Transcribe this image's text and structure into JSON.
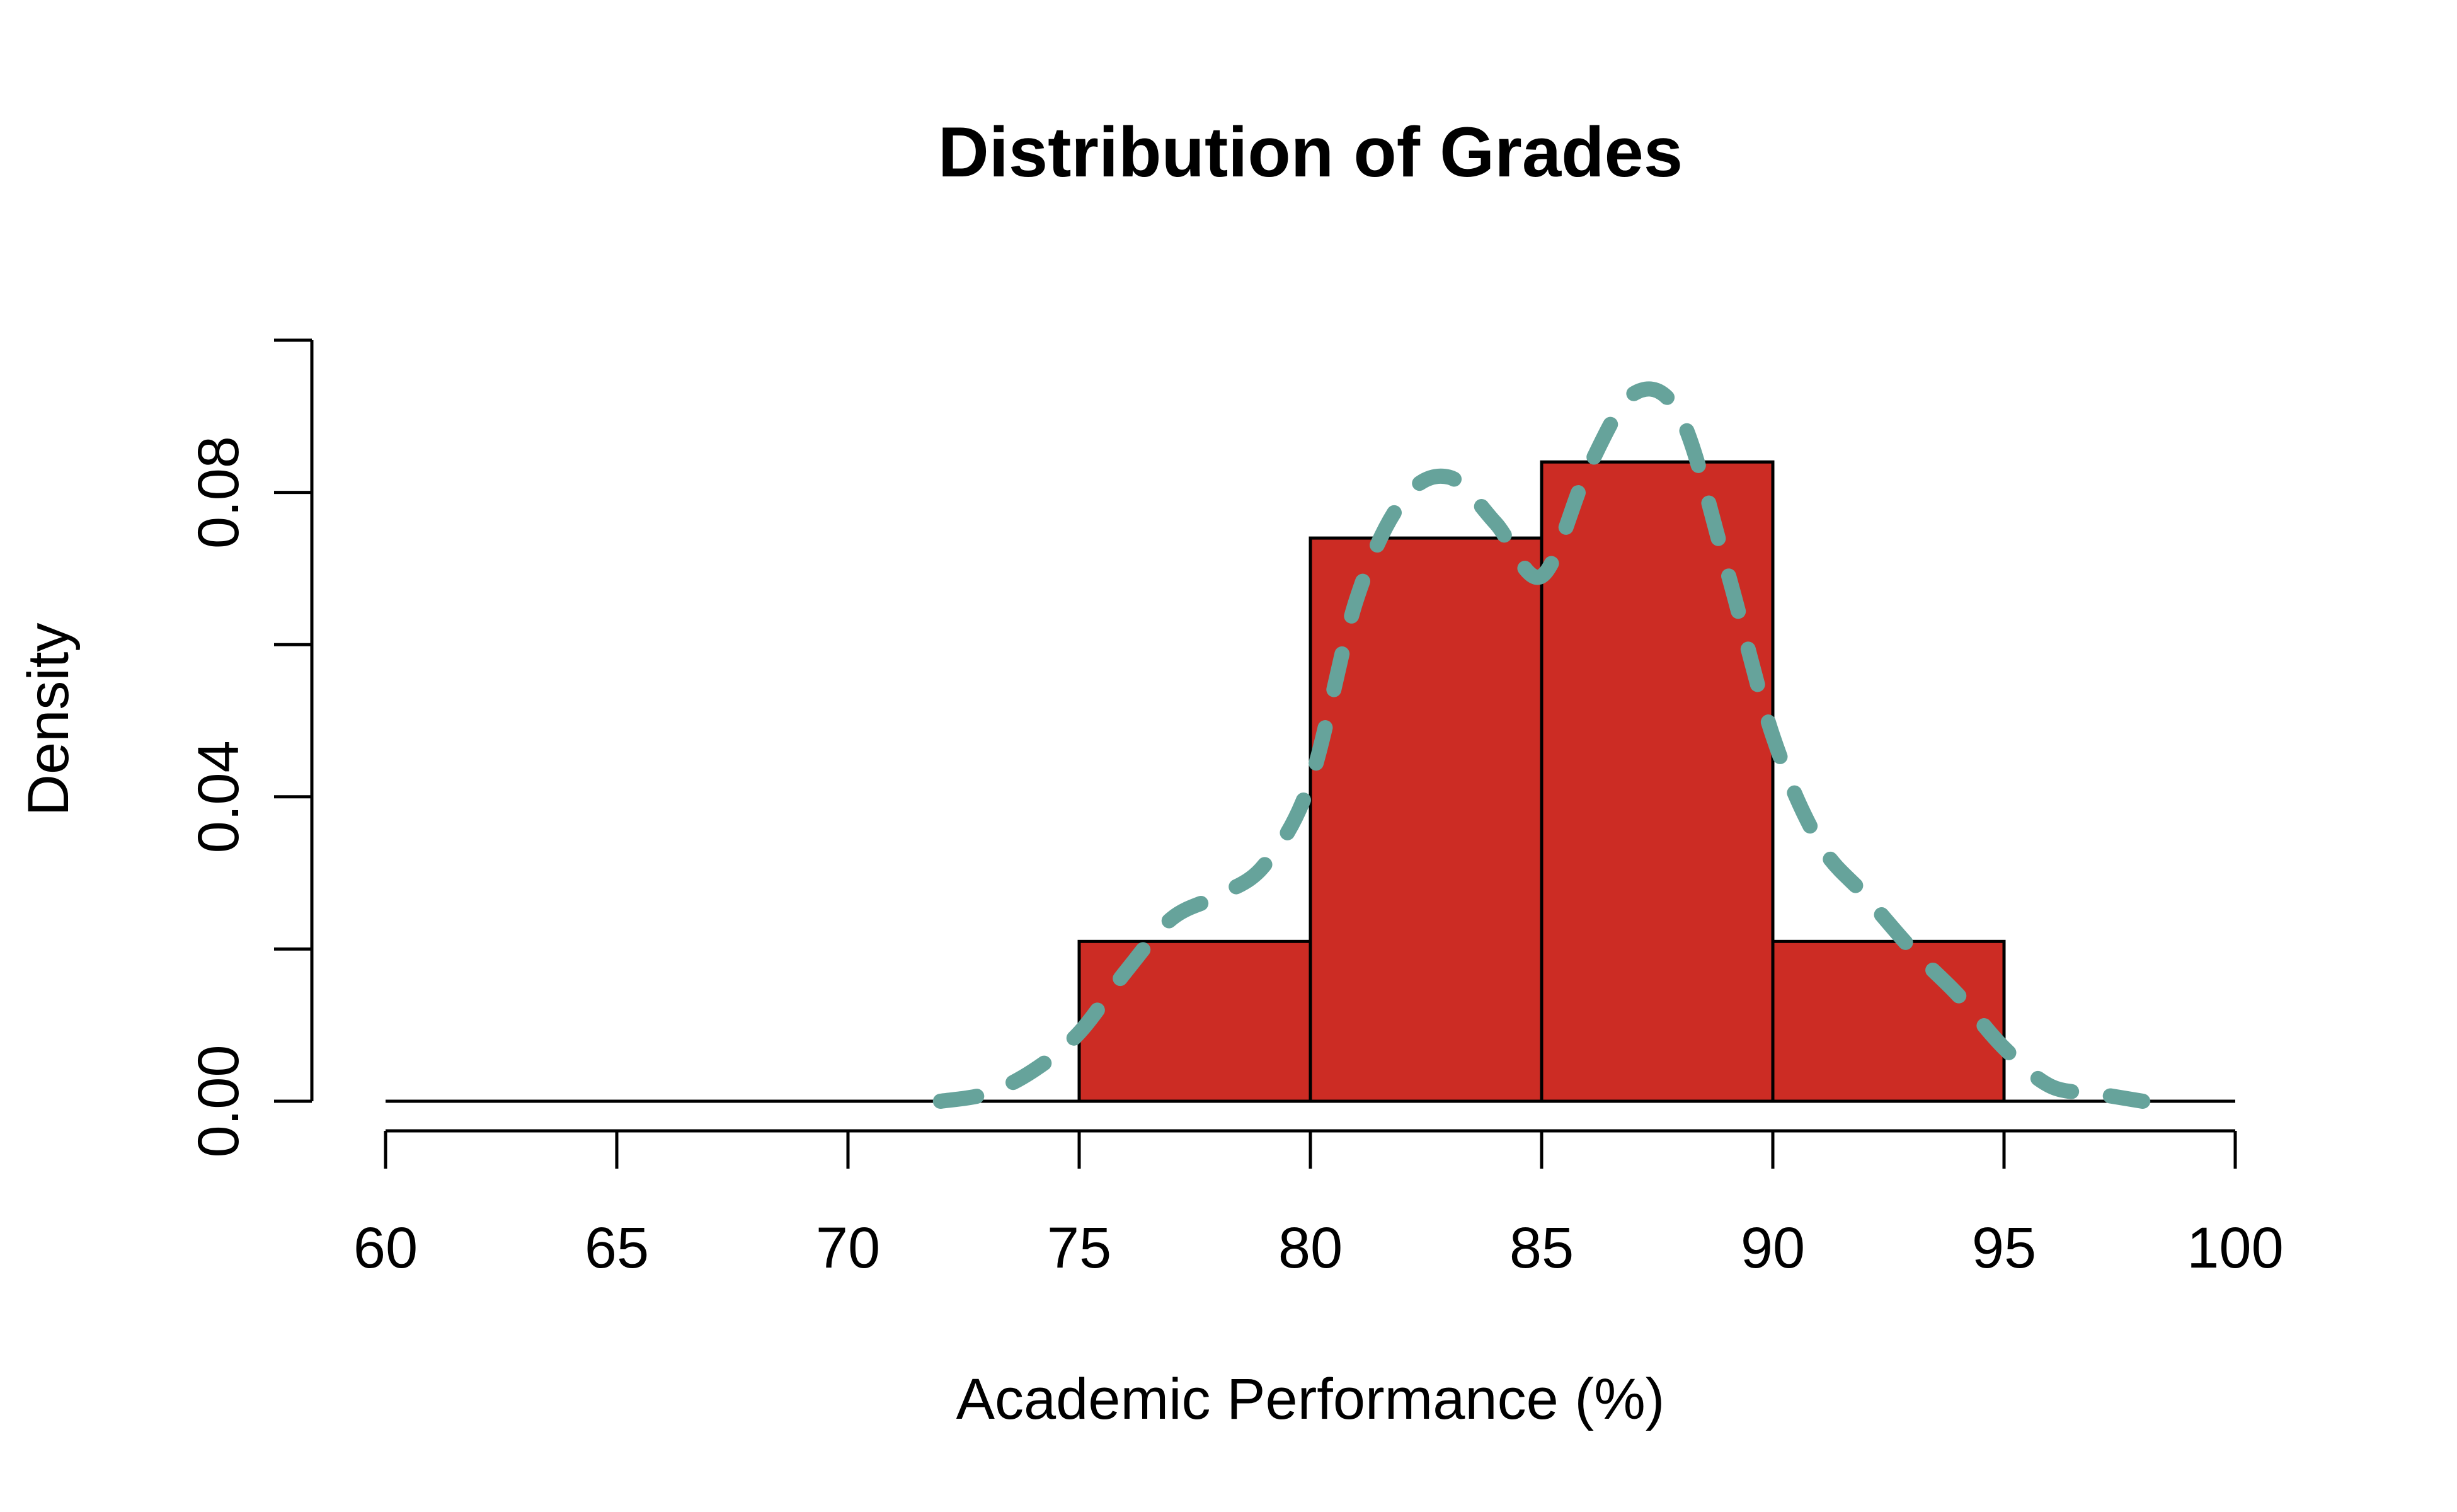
{
  "chart_data": {
    "type": "bar",
    "subtype": "histogram",
    "title": "Distribution of Grades",
    "xlabel": "Academic Performance (%)",
    "ylabel": "Density",
    "xlim": [
      60,
      100
    ],
    "ylim": [
      0,
      0.1
    ],
    "x_ticks": [
      60,
      65,
      70,
      75,
      80,
      85,
      90,
      95,
      100
    ],
    "x_tick_labels": [
      "60",
      "65",
      "70",
      "75",
      "80",
      "85",
      "90",
      "95",
      "100"
    ],
    "y_ticks": [
      0,
      0.02,
      0.04,
      0.06,
      0.08,
      0.1
    ],
    "y_tick_labels": [
      "0.00",
      "",
      "0.04",
      "",
      "0.08",
      ""
    ],
    "bin_edges": [
      75,
      80,
      85,
      90,
      95
    ],
    "values": [
      0.021,
      0.074,
      0.084,
      0.021
    ],
    "bar_color": "#CC2C24",
    "bar_edge_color": "#000000",
    "grid": false,
    "density_curve": {
      "color": "#66A39B",
      "style": "dashed",
      "x": [
        72,
        73,
        74,
        75,
        76,
        77,
        78,
        79,
        80,
        81,
        82,
        83,
        84,
        85,
        86,
        87,
        88,
        89,
        90,
        91,
        92,
        93,
        94,
        95,
        96,
        97,
        98
      ],
      "y": [
        0.0,
        0.001,
        0.004,
        0.009,
        0.017,
        0.024,
        0.027,
        0.031,
        0.042,
        0.066,
        0.079,
        0.082,
        0.076,
        0.069,
        0.083,
        0.093,
        0.09,
        0.07,
        0.048,
        0.034,
        0.027,
        0.02,
        0.014,
        0.007,
        0.002,
        0.001,
        0.0
      ]
    }
  }
}
